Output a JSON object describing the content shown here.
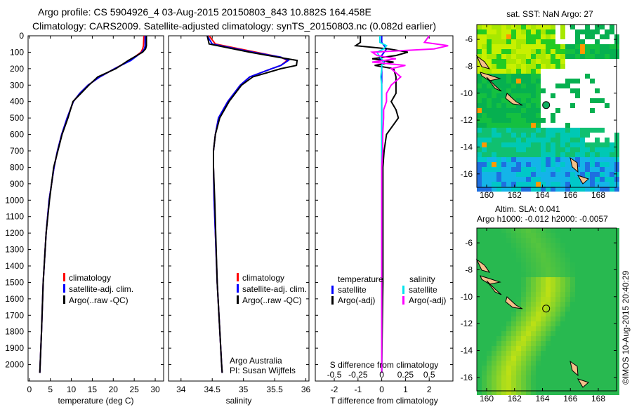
{
  "title_line1": "Argo profile: CS 5904926_4 03-Aug-2015 20150803_843 10.882S 164.458E",
  "title_line2": "Climatology: CARS2009. Satellite-adjusted climatology: synTS_20150803.nc (0.082d earlier)",
  "credit": "©IMOS 10-Aug-2015 20:40:29",
  "colors": {
    "climatology": "#ff0000",
    "satellite": "#0000ff",
    "argo": "#000000",
    "sal_satellite": "#00e5ee",
    "sal_argo": "#ff00ff"
  },
  "chart_data": [
    {
      "type": "line",
      "name": "temperature",
      "xlabel": "temperature (deg C)",
      "ylabel": "",
      "xlim": [
        -0.3,
        32
      ],
      "ylim": [
        2100,
        0
      ],
      "xticks": [
        "0",
        "5",
        "10",
        "15",
        "20",
        "25",
        "30"
      ],
      "xtick_values": [
        0,
        5,
        10,
        15,
        20,
        25,
        30
      ],
      "yticks": [
        "0",
        "100",
        "200",
        "300",
        "400",
        "500",
        "600",
        "700",
        "800",
        "900",
        "1000",
        "1100",
        "1200",
        "1300",
        "1400",
        "1500",
        "1600",
        "1700",
        "1800",
        "1900",
        "2000"
      ],
      "legend": [
        "climatology",
        "satellite-adj. clim.",
        "Argo(..raw -QC)"
      ],
      "legend_placement": "lower-center",
      "depth": [
        0,
        60,
        80,
        100,
        150,
        200,
        250,
        300,
        350,
        400,
        500,
        600,
        700,
        800,
        1000,
        1200,
        1500,
        1800,
        2050
      ],
      "series": [
        {
          "name": "climatology",
          "values": [
            27.3,
            27.2,
            27,
            26.6,
            24,
            20.3,
            16.8,
            14,
            12,
            10.5,
            9,
            7.7,
            6.7,
            5.9,
            4.7,
            4,
            3.3,
            2.9,
            2.5
          ]
        },
        {
          "name": "satellite-adj. clim.",
          "values": [
            27.6,
            27.6,
            27.4,
            26.8,
            24.2,
            20.3,
            16.8,
            14,
            12,
            10.5,
            9,
            7.7,
            6.7,
            5.9,
            4.7,
            4,
            3.3,
            2.9,
            2.5
          ]
        },
        {
          "name": "Argo(..raw -QC)",
          "values": [
            27.9,
            27.9,
            27.7,
            27,
            23.6,
            20.6,
            16.3,
            14.2,
            12.3,
            10.4,
            9.2,
            7.8,
            6.8,
            5.8,
            4.8,
            4,
            3.3,
            2.9,
            2.5
          ]
        }
      ]
    },
    {
      "type": "line",
      "name": "salinity",
      "xlabel": "salinity",
      "xlim": [
        33.8,
        36.05
      ],
      "ylim": [
        2100,
        0
      ],
      "xticks": [
        "34",
        "34.5",
        "35",
        "35.5",
        "36"
      ],
      "xtick_values": [
        34,
        34.5,
        35,
        35.5,
        36
      ],
      "legend": [
        "climatology",
        "satellite-adj. clim.",
        "Argo(..raw -QC)"
      ],
      "legend_placement": "lower-center",
      "annotation": [
        "Argo Australia",
        "PI: Susan Wijffels"
      ],
      "depth": [
        0,
        50,
        100,
        130,
        150,
        180,
        200,
        250,
        300,
        400,
        500,
        600,
        700,
        800,
        1000,
        1500,
        2000,
        2050
      ],
      "series": [
        {
          "name": "climatology",
          "values": [
            34.45,
            34.55,
            35.2,
            35.6,
            35.7,
            35.6,
            35.45,
            35.1,
            34.95,
            34.75,
            34.6,
            34.55,
            34.52,
            34.52,
            34.53,
            34.58,
            34.65,
            34.66
          ]
        },
        {
          "name": "satellite-adj. clim.",
          "values": [
            34.42,
            34.5,
            35.15,
            35.6,
            35.72,
            35.6,
            35.45,
            35.1,
            34.95,
            34.75,
            34.6,
            34.55,
            34.52,
            34.52,
            34.53,
            34.58,
            34.65,
            34.66
          ]
        },
        {
          "name": "Argo(..raw -QC)",
          "values": [
            34.42,
            34.45,
            35.1,
            35.55,
            35.86,
            35.85,
            35.6,
            35.15,
            34.97,
            34.77,
            34.62,
            34.55,
            34.52,
            34.52,
            34.54,
            34.58,
            34.65,
            34.66
          ]
        }
      ]
    },
    {
      "type": "line",
      "name": "difference",
      "xlabel": "T difference from climatology",
      "x2label": "S difference from climatology",
      "xlim": [
        -2.8,
        3.0
      ],
      "ylim": [
        2100,
        0
      ],
      "xticks": [
        "-2",
        "-1",
        "0",
        "1",
        "2"
      ],
      "xtick_values": [
        -2,
        -1,
        0,
        1,
        2
      ],
      "x2ticks": [
        "-0.5",
        "-0.25",
        "0",
        "0.25",
        "0.5"
      ],
      "x2tick_values": [
        -0.5,
        -0.25,
        0,
        0.25,
        0.5
      ],
      "legend_temperature": {
        "title": "temperature",
        "items": [
          "satellite",
          "Argo(-adj)"
        ]
      },
      "legend_salinity": {
        "title": "salinity",
        "items": [
          "satellite",
          "Argo(-adj)"
        ]
      },
      "depth": [
        0,
        40,
        60,
        80,
        100,
        120,
        140,
        160,
        180,
        200,
        250,
        300,
        350,
        400,
        450,
        500,
        600,
        700,
        800,
        1000,
        1500,
        2000,
        2050
      ],
      "series": [
        {
          "name": "T satellite",
          "values": [
            0,
            0,
            0.1,
            0.2,
            0.1,
            0,
            -0.1,
            0.1,
            0,
            0,
            0,
            0,
            0,
            0,
            0,
            0,
            0,
            0,
            0,
            0,
            0,
            0,
            0
          ]
        },
        {
          "name": "T Argo(-adj)",
          "values": [
            -0.9,
            -0.9,
            -1.1,
            0.3,
            1.1,
            0.6,
            -0.4,
            0.5,
            -0.3,
            0.5,
            0.6,
            0.6,
            0.6,
            0.4,
            0.6,
            0.7,
            0.2,
            0.1,
            0.05,
            0.05,
            0.05,
            0,
            0
          ]
        },
        {
          "name": "S satellite",
          "values": [
            -0.02,
            -0.02,
            0.05,
            0.02,
            -0.05,
            -0.03,
            0,
            0.02,
            0,
            0,
            -0.01,
            0,
            0,
            0,
            0,
            0,
            0,
            0,
            0,
            0,
            0,
            0,
            0
          ]
        },
        {
          "name": "S Argo(-adj)",
          "values": [
            0.5,
            0.45,
            0.7,
            0.55,
            -0.1,
            -0.05,
            0.15,
            -0.1,
            0.25,
            0.1,
            0.2,
            0.1,
            0.05,
            0.05,
            0.02,
            0.02,
            0.01,
            0.01,
            0,
            0,
            0,
            0,
            0
          ]
        }
      ]
    }
  ],
  "map_sst": {
    "title": "sat. SST: NaN Argo: 27",
    "lon_ticks": [
      "160",
      "162",
      "164",
      "166",
      "168"
    ],
    "lat_ticks": [
      "-6",
      "-8",
      "-10",
      "-12",
      "-14",
      "-16"
    ],
    "argo_lon": 164.458,
    "argo_lat": -10.882
  },
  "map_sla": {
    "title_line1": "Altim. SLA: 0.041",
    "title_line2": "Argo h1000: -0.012 h2000: -0.0057",
    "lon_ticks": [
      "160",
      "162",
      "164",
      "166",
      "168"
    ],
    "lat_ticks": [
      "-6",
      "-8",
      "-10",
      "-12",
      "-14",
      "-16"
    ],
    "argo_lon": 164.458,
    "argo_lat": -10.882
  }
}
